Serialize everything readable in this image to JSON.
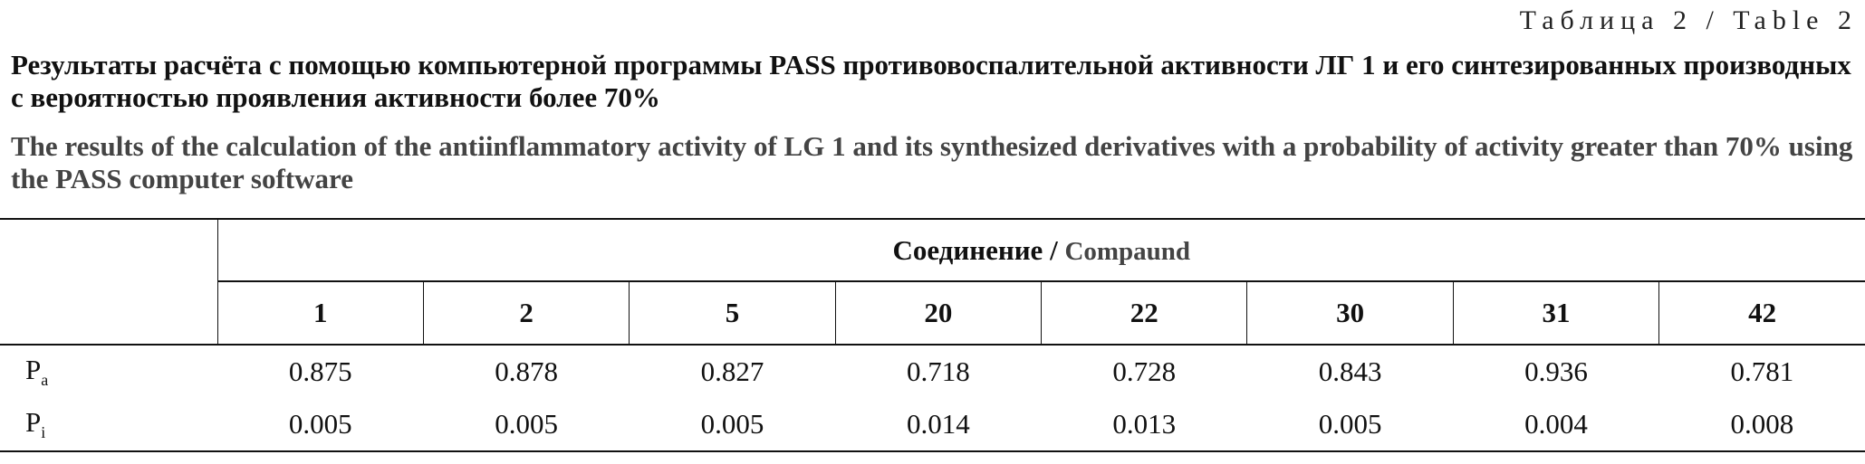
{
  "label": "Таблица 2 / Table 2",
  "title_ru": "Результаты расчёта с помощью компьютерной программы PASS противовоспалительной активности ЛГ 1 и его синтезированных производных с вероятностью проявления активности более 70%",
  "title_en": "The results of the calculation of the antiinflammatory activity of LG 1 and its synthesized derivatives with a probability of activity greater than 70% using the PASS computer software",
  "table": {
    "group_header_ru": "Соединение /",
    "group_header_en": "Compaund",
    "columns": [
      "1",
      "2",
      "5",
      "20",
      "22",
      "30",
      "31",
      "42"
    ],
    "rows": [
      {
        "name": "P",
        "sub": "a",
        "values": [
          0.875,
          0.878,
          0.827,
          0.718,
          0.728,
          0.843,
          0.936,
          0.781
        ]
      },
      {
        "name": "P",
        "sub": "i",
        "values": [
          0.005,
          0.005,
          0.005,
          0.014,
          0.013,
          0.005,
          0.004,
          0.008
        ]
      }
    ]
  }
}
